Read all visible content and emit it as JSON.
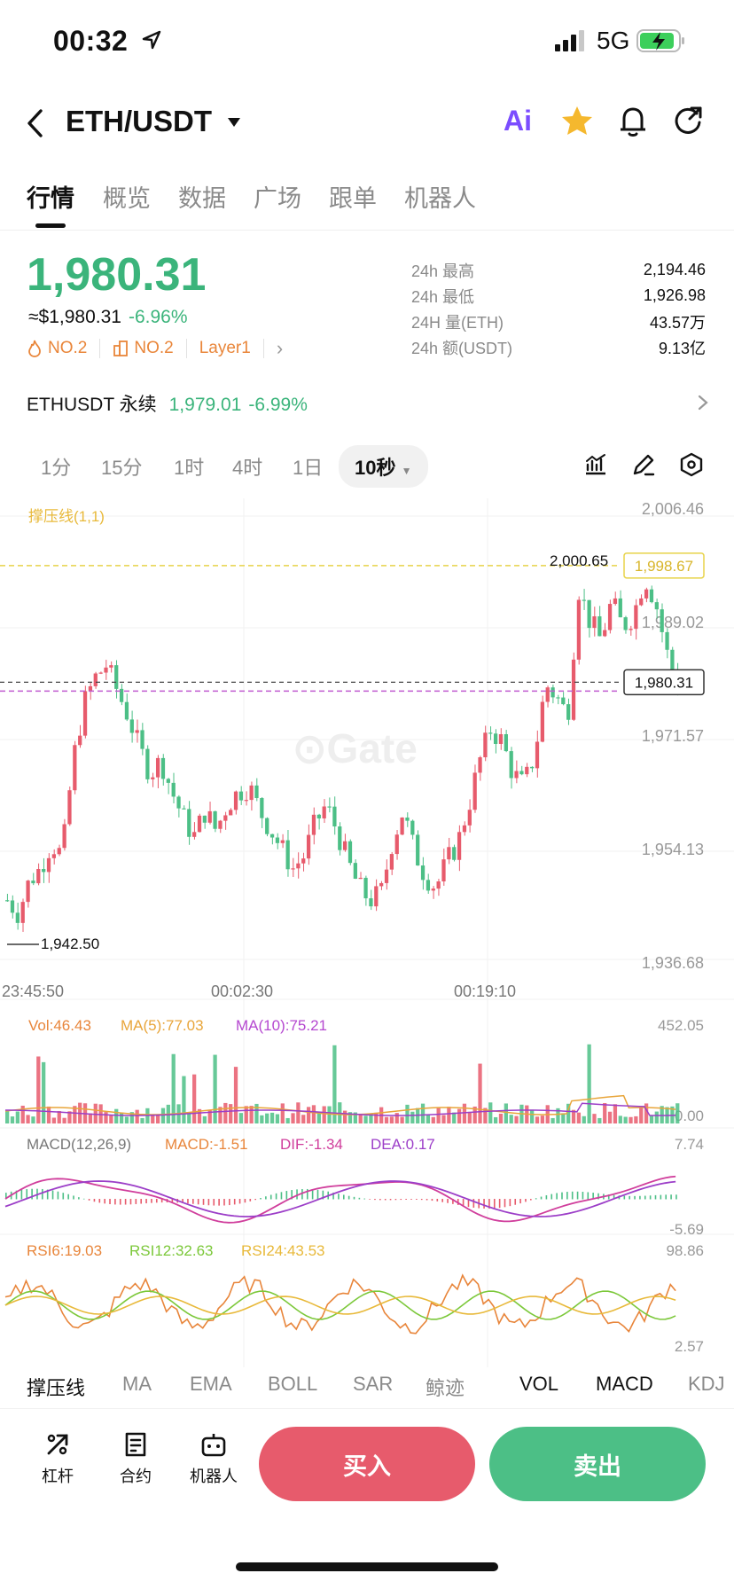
{
  "status_bar": {
    "time": "00:32",
    "network": "5G"
  },
  "header": {
    "title": "ETH/USDT",
    "ai_label": "Ai"
  },
  "tabs": [
    {
      "label": "行情",
      "active": true
    },
    {
      "label": "概览"
    },
    {
      "label": "数据"
    },
    {
      "label": "广场"
    },
    {
      "label": "跟单"
    },
    {
      "label": "机器人"
    }
  ],
  "price": {
    "last": "1,980.31",
    "usd": "≈$1,980.31",
    "change": "-6.96%",
    "tags": [
      "NO.2",
      "NO.2",
      "Layer1"
    ]
  },
  "stats": [
    {
      "label": "24h  最高",
      "value": "2,194.46"
    },
    {
      "label": "24h  最低",
      "value": "1,926.98"
    },
    {
      "label": "24H  量(ETH)",
      "value": "43.57万"
    },
    {
      "label": "24h  额(USDT)",
      "value": "9.13亿"
    }
  ],
  "perp": {
    "name": "ETHUSDT 永续",
    "price": "1,979.01",
    "change": "-6.99%"
  },
  "intervals": [
    "1分",
    "15分",
    "1时",
    "4时",
    "1日",
    "10秒"
  ],
  "colors": {
    "up": "#e75b6c",
    "down": "#4cbf86",
    "price_green": "#3bb47b",
    "accent_purple": "#7b4dff",
    "star": "#f5b82e"
  },
  "chart_data": {
    "type": "candlestick",
    "indicator_label": "撑压线(1,1)",
    "y_ticks": [
      "2,006.46",
      "1,989.02",
      "1,971.57",
      "1,954.13",
      "1,936.68"
    ],
    "ylim": [
      1936.68,
      2006.46
    ],
    "x_ticks": [
      "23:45:50",
      "00:02:30",
      "00:19:10"
    ],
    "resistance": "1,998.67",
    "current": "1,980.31",
    "high_marker": "2,000.65",
    "low_marker": "1,942.50",
    "close_path": [
      1946,
      1944,
      1949,
      1951,
      1955,
      1953,
      1968,
      1977,
      1981,
      1983,
      1979,
      1975,
      1970,
      1966,
      1968,
      1963,
      1959,
      1956,
      1960,
      1957,
      1961,
      1963,
      1964,
      1960,
      1957,
      1954,
      1951,
      1953,
      1958,
      1961,
      1957,
      1952,
      1948,
      1946,
      1947,
      1955,
      1960,
      1954,
      1950,
      1948,
      1952,
      1955,
      1961,
      1968,
      1973,
      1971,
      1966,
      1964,
      1969,
      1980,
      1978,
      1975,
      1995,
      1990,
      1987,
      1993,
      1989,
      1991,
      1997,
      1993,
      1985,
      1980
    ],
    "volume": {
      "label": "Vol:46.43",
      "ma5": "MA(5):77.03",
      "ma10": "MA(10):75.21",
      "max": "452.05",
      "min": "0.00"
    },
    "macd": {
      "label": "MACD(12,26,9)",
      "macd": "MACD:-1.51",
      "dif": "DIF:-1.34",
      "dea": "DEA:0.17",
      "max": "7.74",
      "min": "-5.69"
    },
    "rsi": {
      "rsi6": "RSI6:19.03",
      "rsi12": "RSI12:32.63",
      "rsi24": "RSI24:43.53",
      "max": "98.86",
      "min": "2.57"
    }
  },
  "indicator_tabs": [
    {
      "label": "撑压线",
      "active": true
    },
    {
      "label": "MA"
    },
    {
      "label": "EMA"
    },
    {
      "label": "BOLL"
    },
    {
      "label": "SAR"
    },
    {
      "label": "鲸迹"
    },
    {
      "label": "VOL",
      "active": true
    },
    {
      "label": "MACD",
      "active": true
    },
    {
      "label": "KDJ"
    }
  ],
  "actions": [
    {
      "label": "杠杆",
      "icon": "leverage-icon"
    },
    {
      "label": "合约",
      "icon": "contract-icon"
    },
    {
      "label": "机器人",
      "icon": "robot-icon"
    }
  ],
  "buttons": {
    "buy": "买入",
    "sell": "卖出"
  }
}
